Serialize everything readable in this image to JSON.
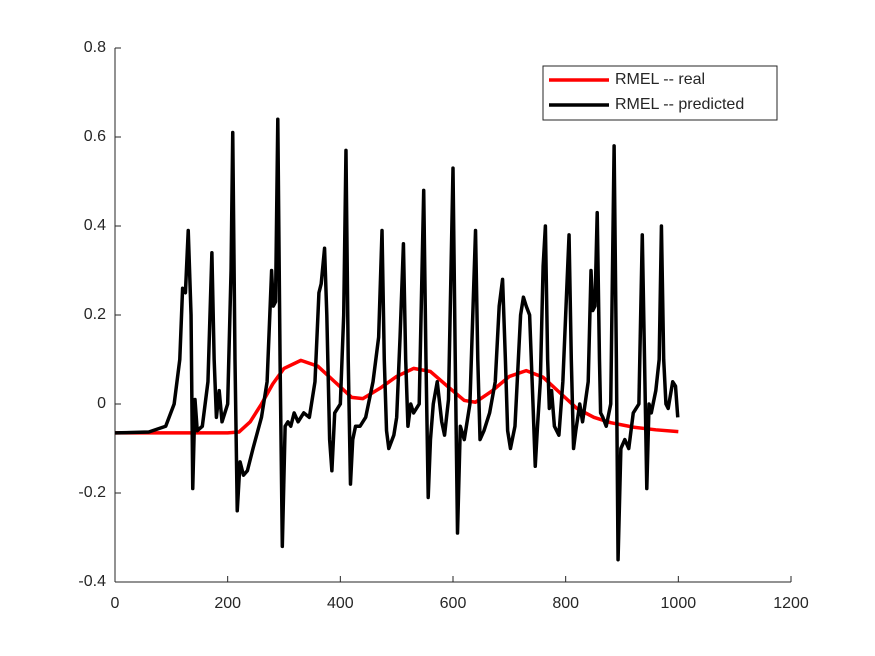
{
  "chart_data": {
    "type": "line",
    "xlim": [
      0,
      1200
    ],
    "xticks": [
      0,
      200,
      400,
      600,
      800,
      1000,
      1200
    ],
    "ylim": [
      -0.4,
      0.8
    ],
    "yticks": [
      -0.4,
      -0.2,
      0,
      0.2,
      0.4,
      0.6,
      0.8
    ],
    "grid": false,
    "legend": "northeast",
    "series": [
      {
        "name": "RMEL -- real",
        "color": "#ff0000",
        "x": [
          0,
          50,
          100,
          150,
          200,
          220,
          240,
          260,
          280,
          300,
          330,
          360,
          390,
          420,
          440,
          470,
          500,
          530,
          560,
          590,
          620,
          640,
          670,
          700,
          730,
          760,
          790,
          820,
          850,
          880,
          920,
          960,
          1000
        ],
        "values": [
          -0.065,
          -0.065,
          -0.065,
          -0.065,
          -0.065,
          -0.063,
          -0.04,
          0.0,
          0.045,
          0.08,
          0.098,
          0.085,
          0.05,
          0.015,
          0.012,
          0.035,
          0.062,
          0.08,
          0.073,
          0.04,
          0.008,
          0.004,
          0.03,
          0.062,
          0.075,
          0.06,
          0.025,
          -0.01,
          -0.03,
          -0.042,
          -0.052,
          -0.058,
          -0.062
        ]
      },
      {
        "name": "RMEL -- predicted",
        "color": "#000000",
        "x": [
          0,
          60,
          90,
          105,
          115,
          120,
          125,
          130,
          135,
          138,
          142,
          146,
          155,
          165,
          172,
          176,
          180,
          185,
          190,
          200,
          206,
          209,
          213,
          217,
          222,
          228,
          235,
          245,
          260,
          270,
          278,
          281,
          285,
          289,
          293,
          297,
          302,
          307,
          312,
          318,
          325,
          335,
          345,
          355,
          362,
          366,
          372,
          376,
          381,
          385,
          390,
          400,
          406,
          410,
          414,
          418,
          422,
          427,
          435,
          445,
          458,
          468,
          474,
          478,
          482,
          486,
          495,
          500,
          506,
          512,
          516,
          520,
          525,
          530,
          540,
          548,
          552,
          556,
          560,
          565,
          572,
          580,
          585,
          592,
          600,
          604,
          608,
          613,
          620,
          630,
          640,
          644,
          648,
          655,
          665,
          675,
          682,
          688,
          693,
          697,
          702,
          710,
          720,
          725,
          730,
          736,
          742,
          746,
          750,
          755,
          760,
          764,
          768,
          771,
          775,
          780,
          788,
          795,
          800,
          806,
          810,
          814,
          818,
          825,
          830,
          840,
          845,
          848,
          852,
          856,
          860,
          862,
          866,
          872,
          880,
          886,
          890,
          893,
          898,
          905,
          912,
          920,
          930,
          936,
          940,
          944,
          948,
          952,
          960,
          966,
          970,
          974,
          978,
          982,
          990,
          995,
          999
        ],
        "values": [
          -0.065,
          -0.063,
          -0.05,
          0,
          0.1,
          0.26,
          0.25,
          0.39,
          0.2,
          -0.19,
          0.01,
          -0.06,
          -0.05,
          0.05,
          0.34,
          0.1,
          -0.03,
          0.03,
          -0.04,
          0.0,
          0.3,
          0.61,
          0.1,
          -0.24,
          -0.13,
          -0.16,
          -0.15,
          -0.1,
          -0.03,
          0.05,
          0.3,
          0.22,
          0.23,
          0.64,
          0.1,
          -0.32,
          -0.05,
          -0.04,
          -0.05,
          -0.02,
          -0.04,
          -0.02,
          -0.03,
          0.05,
          0.25,
          0.27,
          0.35,
          0.2,
          -0.08,
          -0.15,
          -0.02,
          0,
          0.2,
          0.57,
          0.1,
          -0.18,
          -0.08,
          -0.05,
          -0.05,
          -0.03,
          0.05,
          0.15,
          0.39,
          0.1,
          -0.06,
          -0.1,
          -0.07,
          -0.03,
          0.15,
          0.36,
          0.1,
          -0.05,
          0.0,
          -0.02,
          0.0,
          0.48,
          0.1,
          -0.21,
          -0.08,
          0.0,
          0.05,
          -0.04,
          -0.07,
          0.01,
          0.53,
          0.1,
          -0.29,
          -0.05,
          -0.08,
          0.0,
          0.39,
          0.1,
          -0.08,
          -0.06,
          -0.02,
          0.05,
          0.22,
          0.28,
          0.1,
          -0.06,
          -0.1,
          -0.05,
          0.2,
          0.24,
          0.22,
          0.2,
          0.0,
          -0.14,
          -0.05,
          0.05,
          0.31,
          0.4,
          0.1,
          -0.01,
          0.03,
          -0.05,
          -0.07,
          0.05,
          0.2,
          0.38,
          0.1,
          -0.1,
          -0.06,
          0.0,
          -0.04,
          0.05,
          0.3,
          0.21,
          0.22,
          0.43,
          0.1,
          -0.02,
          -0.03,
          -0.05,
          0.0,
          0.58,
          0.1,
          -0.35,
          -0.1,
          -0.08,
          -0.1,
          -0.02,
          0.0,
          0.38,
          0.1,
          -0.19,
          0.0,
          -0.02,
          0.03,
          0.1,
          0.4,
          0.1,
          0.0,
          -0.01,
          0.05,
          0.04,
          -0.03
        ]
      }
    ]
  }
}
